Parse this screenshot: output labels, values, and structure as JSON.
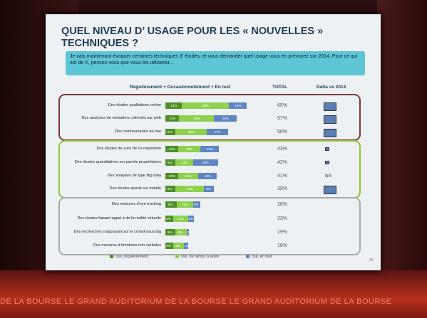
{
  "slide": {
    "title": "QUEL NIVEAU D’ USAGE POUR LES « NOUVELLES » TECHNIQUES ?",
    "intro": "Je vais maintenant évoquer certaines techniques d’ études, et vous demander quel usage vous en prévoyez sur 2014. Pour ce qui est de X, pensez-vous que vous les utiliserez...",
    "header_bars": "Régulièrement + Occasionnellement + En test",
    "header_total": "TOTAL",
    "header_delta": "Delta vs 2013",
    "slide_number": "26",
    "legend": [
      "Oui, régulièrement",
      "Oui, de temps à autre",
      "Oui, en test"
    ]
  },
  "colors": {
    "regular": "#4f8f2a",
    "occasional": "#8fd14f",
    "test": "#5f86c2",
    "group1_border": "#7a3a3a",
    "group2_border": "#8fc63a",
    "group3_border": "#a9a9a9",
    "intro_bg": "#5cc6d5",
    "title": "#1f3a55"
  },
  "chart_data": {
    "type": "bar",
    "stacked": true,
    "orientation": "horizontal",
    "title": "QUEL NIVEAU D’ USAGE POUR LES « NOUVELLES » TECHNIQUES ?",
    "xlim": [
      0,
      100
    ],
    "series_names": [
      "Oui, régulièrement",
      "Oui, de temps à autre",
      "Oui, en test"
    ],
    "rows": [
      {
        "label": "Des études qualitatives online",
        "group": 1,
        "total": "65%",
        "values": [
          13,
          38,
          14
        ],
        "delta": "box"
      },
      {
        "label": "Des analyses de verbatims collectés sur web",
        "group": 1,
        "total": "57%",
        "values": [
          11,
          28,
          18
        ],
        "delta": "box"
      },
      {
        "label": "Des communautés on-line",
        "group": 1,
        "total": "50%",
        "values": [
          8,
          25,
          17
        ],
        "delta": "box"
      },
      {
        "label": "Des études de suivi de l’e-reputation",
        "group": 2,
        "total": "43%",
        "values": [
          10,
          18,
          15
        ],
        "delta": "mark"
      },
      {
        "label": "Des études quantitatives sur panels propriétaires",
        "group": 2,
        "total": "42%",
        "values": [
          8,
          14,
          20
        ],
        "delta": "mark"
      },
      {
        "label": "Des analyses de type Big data",
        "group": 2,
        "total": "41%",
        "values": [
          10,
          16,
          15
        ],
        "delta": "NS"
      },
      {
        "label": "Des études quanti sur mobile",
        "group": 2,
        "total": "39%",
        "values": [
          8,
          23,
          8
        ],
        "delta": "box"
      },
      {
        "label": "Des mesures d’eye tracking",
        "group": 3,
        "total": "28%",
        "values": [
          9,
          13,
          6
        ],
        "delta": ""
      },
      {
        "label": "Des études faisant appel à de la réalité virtuelle",
        "group": 3,
        "total": "23%",
        "values": [
          6,
          12,
          5
        ],
        "delta": ""
      },
      {
        "label": "Des recherches s’appuyant sur le crowd-sourcing",
        "group": 3,
        "total": "19%",
        "values": [
          8,
          9,
          2
        ],
        "delta": ""
      },
      {
        "label": "Des mesures d’émotions non verbales",
        "group": 3,
        "total": "18%",
        "values": [
          6,
          9,
          3
        ],
        "delta": ""
      }
    ]
  },
  "room": {
    "floor_text": "DE LA BOURSE LE GRAND AUDITORIUM DE LA BOURSE LE GRAND AUDITORIUM DE LA BOURSE"
  }
}
